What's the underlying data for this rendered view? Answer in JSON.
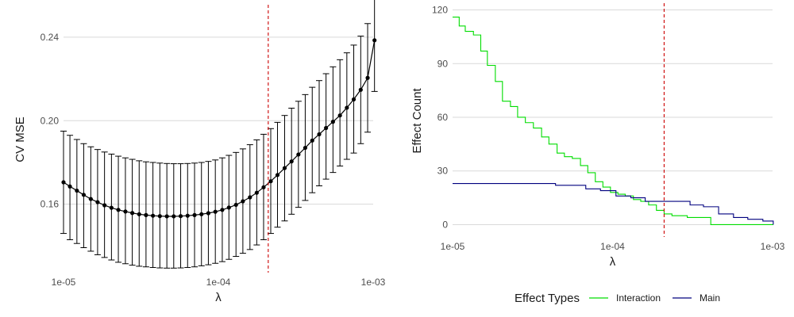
{
  "colors": {
    "grid": "#d9d9d9",
    "cv_line": "#000000",
    "errorbar": "#000000",
    "vline": "#cc0000",
    "interaction": "#00dd00",
    "main": "#00007f"
  },
  "chart_data": [
    {
      "type": "line",
      "xlabel": "λ",
      "ylabel": "CV MSE",
      "xscale": "log",
      "xlim": [
        1e-05,
        0.001
      ],
      "ylim": [
        0.128,
        0.254
      ],
      "xticks": [
        1e-05,
        0.0001,
        0.001
      ],
      "xtick_labels": [
        "1e-05",
        "1e-04",
        "1e-03"
      ],
      "yticks": [
        0.16,
        0.2,
        0.24
      ],
      "ytick_labels": [
        "0.16",
        "0.20",
        "0.24"
      ],
      "grid": "horizontal",
      "selected_lambda": 0.00021,
      "series": [
        {
          "x": [
            1e-05,
            1.1e-05,
            1.22e-05,
            1.35e-05,
            1.5e-05,
            1.66e-05,
            1.84e-05,
            2.04e-05,
            2.26e-05,
            2.51e-05,
            2.78e-05,
            3.08e-05,
            3.41e-05,
            3.78e-05,
            4.19e-05,
            4.65e-05,
            5.15e-05,
            5.71e-05,
            6.33e-05,
            7.02e-05,
            7.78e-05,
            8.62e-05,
            9.56e-05,
            0.000106,
            0.000117,
            0.00013,
            0.000144,
            0.00016,
            0.000177,
            0.000196,
            0.000218,
            0.000241,
            0.000268,
            0.000297,
            0.000329,
            0.000364,
            0.000404,
            0.000448,
            0.000496,
            0.00055,
            0.00061,
            0.000676,
            0.000749,
            0.000831,
            0.000921,
            0.00102
          ],
          "values": [
            0.1705,
            0.1685,
            0.1665,
            0.1645,
            0.1625,
            0.161,
            0.1595,
            0.1583,
            0.1573,
            0.1565,
            0.1558,
            0.1552,
            0.1548,
            0.1545,
            0.1543,
            0.1542,
            0.1542,
            0.1543,
            0.1545,
            0.1548,
            0.1552,
            0.1557,
            0.1564,
            0.1573,
            0.1584,
            0.1597,
            0.1614,
            0.1633,
            0.1655,
            0.1681,
            0.171,
            0.174,
            0.1773,
            0.1805,
            0.1838,
            0.187,
            0.1905,
            0.1935,
            0.1965,
            0.1995,
            0.2025,
            0.2062,
            0.2102,
            0.2148,
            0.2205,
            0.2385
          ],
          "lower": [
            0.146,
            0.143,
            0.1412,
            0.1392,
            0.1375,
            0.1358,
            0.1345,
            0.1333,
            0.1322,
            0.1315,
            0.1308,
            0.1303,
            0.13,
            0.1297,
            0.1295,
            0.1294,
            0.1294,
            0.1295,
            0.1297,
            0.13,
            0.1305,
            0.131,
            0.1317,
            0.1325,
            0.1336,
            0.135,
            0.1365,
            0.1383,
            0.1405,
            0.143,
            0.146,
            0.149,
            0.152,
            0.1552,
            0.1585,
            0.1618,
            0.1655,
            0.1688,
            0.172,
            0.1752,
            0.1783,
            0.1815,
            0.1845,
            0.189,
            0.1945,
            0.214
          ],
          "upper": [
            0.195,
            0.193,
            0.191,
            0.189,
            0.1875,
            0.1862,
            0.185,
            0.184,
            0.183,
            0.1822,
            0.1815,
            0.1808,
            0.1803,
            0.18,
            0.1797,
            0.1795,
            0.1794,
            0.1794,
            0.1795,
            0.1797,
            0.18,
            0.1805,
            0.1812,
            0.1822,
            0.1834,
            0.1848,
            0.1865,
            0.1885,
            0.1908,
            0.1935,
            0.1962,
            0.1992,
            0.2025,
            0.206,
            0.2093,
            0.2125,
            0.216,
            0.2192,
            0.2225,
            0.2258,
            0.2292,
            0.2325,
            0.2362,
            0.2405,
            0.2465,
            0.2635
          ]
        }
      ]
    },
    {
      "type": "line",
      "xlabel": "λ",
      "ylabel": "Effect Count",
      "xscale": "log",
      "xlim": [
        1e-05,
        0.001
      ],
      "ylim": [
        -6,
        122
      ],
      "xticks": [
        1e-05,
        0.0001,
        0.001
      ],
      "xtick_labels": [
        "1e-05",
        "1e-04",
        "1e-03"
      ],
      "yticks": [
        0,
        30,
        60,
        90,
        120
      ],
      "ytick_labels": [
        "0",
        "30",
        "60",
        "90",
        "120"
      ],
      "grid": "horizontal",
      "selected_lambda": 0.00021,
      "legend": {
        "title": "Effect Types",
        "position": "bottom"
      },
      "series": [
        {
          "name": "Interaction",
          "x": [
            1e-05,
            1.1e-05,
            1.2e-05,
            1.35e-05,
            1.5e-05,
            1.65e-05,
            1.85e-05,
            2.05e-05,
            2.3e-05,
            2.55e-05,
            2.85e-05,
            3.2e-05,
            3.6e-05,
            4e-05,
            4.5e-05,
            5e-05,
            5.6e-05,
            6.3e-05,
            7e-05,
            7.8e-05,
            8.7e-05,
            9.7e-05,
            0.000108,
            0.00012,
            0.000135,
            0.00015,
            0.000168,
            0.000188,
            0.00021,
            0.000235,
            0.000262,
            0.000293,
            0.000328,
            0.000367,
            0.000411,
            0.00046,
            0.000515,
            0.000576,
            0.000645,
            0.000722,
            0.000808,
            0.000905,
            0.00101
          ],
          "values": [
            116,
            111,
            108,
            106,
            97,
            89,
            80,
            69,
            66,
            60,
            57,
            54,
            49,
            45,
            40,
            38,
            37,
            33,
            29,
            24,
            21,
            18,
            17,
            16,
            14,
            13,
            11,
            8,
            6,
            5,
            5,
            4,
            4,
            4,
            0,
            0,
            0,
            0,
            0,
            0,
            0,
            0,
            0
          ]
        },
        {
          "name": "Main",
          "x": [
            1e-05,
            1.2e-05,
            1.5e-05,
            1.9e-05,
            2.3e-05,
            2.9e-05,
            3.6e-05,
            4.4e-05,
            5.5e-05,
            6.8e-05,
            8.4e-05,
            0.000105,
            0.00013,
            0.00016,
            0.0002,
            0.000245,
            0.000305,
            0.00037,
            0.00046,
            0.00057,
            0.0007,
            0.00087,
            0.00101
          ],
          "values": [
            23,
            23,
            23,
            23,
            23,
            23,
            23,
            22,
            22,
            20,
            19,
            16,
            15,
            13,
            13,
            13,
            11,
            10,
            6,
            4,
            3,
            2,
            0
          ]
        }
      ]
    }
  ]
}
